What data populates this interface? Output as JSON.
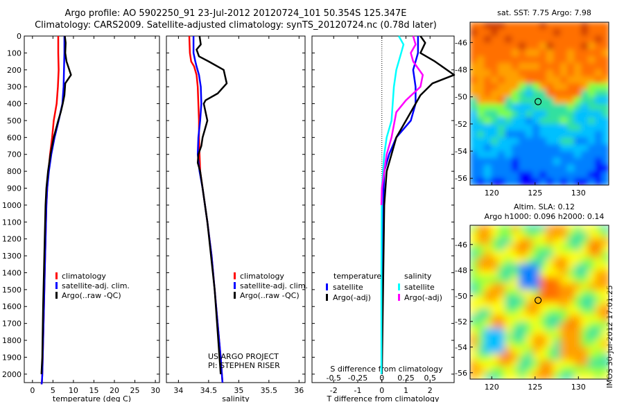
{
  "title_line1": "Argo profile: AO 5902250_91 23-Jul-2012 20120724_101 50.354S 125.347E",
  "title_line2": "Climatology: CARS2009. Satellite-adjusted climatology: synTS_20120724.nc (0.78d later)",
  "map1_title": "sat. SST: 7.75 Argo: 7.98",
  "map2_title_line1": "Altim. SLA: 0.12",
  "map2_title_line2": "Argo h1000: 0.096 h2000: 0.14",
  "stamp": "IMOS 30-Jul-2012 17:01:25",
  "project_line1": "US ARGO PROJECT",
  "project_line2": "PI: STEPHEN RISER",
  "colors": {
    "climatology": "#ff0000",
    "satellite": "#0000ff",
    "argo": "#000000",
    "cyan": "#00ffff",
    "magenta": "#ff00ff"
  },
  "chart_data": [
    {
      "type": "line",
      "xlabel": "temperature (deg C)",
      "ylabel": "",
      "xlim": [
        -2,
        31
      ],
      "ylim": [
        2050,
        0
      ],
      "xticks": [
        0,
        5,
        10,
        15,
        20,
        25,
        30
      ],
      "yticks": [
        0,
        100,
        200,
        300,
        400,
        500,
        600,
        700,
        800,
        900,
        1000,
        1100,
        1200,
        1300,
        1400,
        1500,
        1600,
        1700,
        1800,
        1900,
        2000
      ],
      "legend": [
        "climatology",
        "satellite-adj. clim.",
        "Argo(..raw -QC)"
      ],
      "series": [
        {
          "name": "climatology",
          "color": "#ff0000",
          "x": [
            6.3,
            6.3,
            6.4,
            6.2,
            5.9,
            5.2,
            4.8,
            4.3,
            3.9,
            3.6,
            3.4,
            3.2,
            3.0,
            2.8,
            2.6,
            2.5,
            2.4,
            2.3,
            2.2
          ],
          "y": [
            0,
            100,
            200,
            300,
            400,
            500,
            600,
            700,
            800,
            900,
            1000,
            1200,
            1400,
            1600,
            1800,
            1900,
            2000,
            2050,
            2060
          ]
        },
        {
          "name": "satellite-adj. clim.",
          "color": "#0000ff",
          "x": [
            7.8,
            7.8,
            7.7,
            7.6,
            7.3,
            6.4,
            5.4,
            4.6,
            4.0,
            3.6,
            3.4,
            3.2,
            3.0,
            2.8,
            2.6,
            2.5,
            2.4,
            2.3,
            2.2
          ],
          "y": [
            0,
            100,
            200,
            300,
            400,
            500,
            600,
            700,
            800,
            900,
            1000,
            1200,
            1400,
            1600,
            1800,
            1900,
            2000,
            2050,
            2060
          ]
        },
        {
          "name": "Argo(..raw -QC)",
          "color": "#000000",
          "x": [
            7.9,
            8.1,
            8.0,
            8.3,
            9.4,
            8.0,
            7.8,
            7.4,
            6.9,
            6.3,
            5.2,
            4.4,
            3.8,
            3.4,
            3.2,
            3.0,
            2.6,
            2.4,
            2.2
          ],
          "y": [
            0,
            40,
            100,
            150,
            230,
            280,
            350,
            400,
            450,
            500,
            600,
            700,
            800,
            900,
            1000,
            1200,
            1600,
            1900,
            2000
          ]
        }
      ]
    },
    {
      "type": "line",
      "xlabel": "salinity",
      "ylabel": "",
      "xlim": [
        33.8,
        36.1
      ],
      "ylim": [
        2050,
        0
      ],
      "xticks": [
        34,
        34.5,
        35,
        35.5,
        36
      ],
      "xticklabels": [
        "34",
        "34.5",
        "35",
        "35.5",
        "36"
      ],
      "legend": [
        "climatology",
        "satellite-adj. clim.",
        "Argo(..raw -QC)"
      ],
      "series": [
        {
          "name": "climatology",
          "color": "#ff0000",
          "x": [
            34.18,
            34.19,
            34.21,
            34.26,
            34.3,
            34.32,
            34.33,
            34.34,
            34.34,
            34.35,
            34.36,
            34.4,
            34.48,
            34.55,
            34.6,
            34.65,
            34.7,
            34.72,
            34.73
          ],
          "y": [
            0,
            100,
            150,
            180,
            230,
            300,
            400,
            500,
            600,
            700,
            800,
            900,
            1100,
            1300,
            1500,
            1700,
            1900,
            2000,
            2050
          ]
        },
        {
          "name": "satellite-adj. clim.",
          "color": "#0000ff",
          "x": [
            34.25,
            34.25,
            34.28,
            34.3,
            34.34,
            34.37,
            34.38,
            34.36,
            34.33,
            34.32,
            34.35,
            34.4,
            34.48,
            34.55,
            34.6,
            34.65,
            34.7,
            34.72,
            34.73
          ],
          "y": [
            0,
            100,
            150,
            180,
            230,
            300,
            400,
            500,
            600,
            700,
            800,
            900,
            1100,
            1300,
            1500,
            1700,
            1900,
            2000,
            2050
          ]
        },
        {
          "name": "Argo(..raw -QC)",
          "color": "#000000",
          "x": [
            34.35,
            34.37,
            34.3,
            34.34,
            34.5,
            34.75,
            34.8,
            34.65,
            34.45,
            34.42,
            34.48,
            34.44,
            34.4,
            34.38,
            34.33,
            34.32,
            34.36,
            34.4,
            34.48,
            34.6,
            34.7
          ],
          "y": [
            0,
            50,
            80,
            120,
            150,
            200,
            280,
            340,
            380,
            400,
            500,
            550,
            600,
            650,
            700,
            750,
            800,
            900,
            1100,
            1500,
            2000
          ]
        }
      ]
    },
    {
      "type": "line",
      "xlabel": "T difference from climatology",
      "ylabel": "",
      "xlim": [
        -2.9,
        3.0
      ],
      "ylim": [
        2050,
        0
      ],
      "xticks": [
        -2,
        -1,
        0,
        1,
        2
      ],
      "top_axis_label": "S difference from climatology",
      "top_ticks": [
        -0.5,
        -0.25,
        0,
        0.25,
        0.5
      ],
      "top_ticklabels": [
        "-0.5",
        "-0.25",
        "0",
        "0.25",
        "0.5"
      ],
      "legend_temperature": [
        "satellite",
        "Argo(-adj)"
      ],
      "legend_salinity": [
        "satellite",
        "Argo(-adj)"
      ],
      "legend_headers": [
        "temperature",
        "salinity"
      ],
      "series": [
        {
          "name": "T satellite",
          "color": "#0000ff",
          "x": [
            1.5,
            1.5,
            1.3,
            1.4,
            1.4,
            1.2,
            0.6,
            0.3,
            0.1,
            0.05,
            0.0,
            0.0,
            0.0
          ],
          "y": [
            0,
            100,
            200,
            300,
            400,
            500,
            600,
            700,
            800,
            1000,
            1400,
            1800,
            2000
          ]
        },
        {
          "name": "T Argo(-adj)",
          "color": "#000000",
          "x": [
            1.6,
            1.8,
            1.6,
            2.2,
            3.0,
            2.1,
            1.6,
            1.4,
            1.0,
            0.6,
            0.4,
            0.2,
            0.1,
            0.0
          ],
          "y": [
            0,
            40,
            100,
            150,
            230,
            280,
            350,
            400,
            500,
            600,
            700,
            800,
            1000,
            2000
          ]
        },
        {
          "name": "S satellite",
          "color": "#00ffff",
          "x": [
            0.7,
            0.9,
            0.8,
            0.6,
            0.5,
            0.45,
            0.4,
            0.2,
            0.1,
            0.0,
            -0.02,
            -0.02
          ],
          "y": [
            0,
            50,
            100,
            200,
            300,
            400,
            500,
            600,
            700,
            900,
            1400,
            2000
          ]
        },
        {
          "name": "S Argo(-adj)",
          "color": "#ff00ff",
          "x": [
            1.3,
            1.4,
            1.2,
            1.3,
            1.7,
            1.6,
            1.0,
            0.6,
            0.4,
            0.2,
            0.0,
            -0.02
          ],
          "y": [
            0,
            50,
            100,
            150,
            230,
            300,
            380,
            450,
            600,
            700,
            900,
            1000
          ]
        }
      ]
    },
    {
      "type": "heatmap",
      "title": "sat. SST: 7.75 Argo: 7.98",
      "xlim": [
        117.5,
        133.5
      ],
      "ylim": [
        -56.5,
        -44.5
      ],
      "xticks": [
        120,
        125,
        130
      ],
      "yticks": [
        -46,
        -48,
        -50,
        -52,
        -54,
        -56
      ],
      "marker": {
        "x": 125.347,
        "y": -50.354
      }
    },
    {
      "type": "heatmap",
      "title": "Altim. SLA: 0.12",
      "xlim": [
        117.5,
        133.5
      ],
      "ylim": [
        -56.5,
        -44.5
      ],
      "xticks": [
        120,
        125,
        130
      ],
      "yticks": [
        -46,
        -48,
        -50,
        -52,
        -54,
        -56
      ],
      "marker": {
        "x": 125.347,
        "y": -50.354
      }
    }
  ]
}
